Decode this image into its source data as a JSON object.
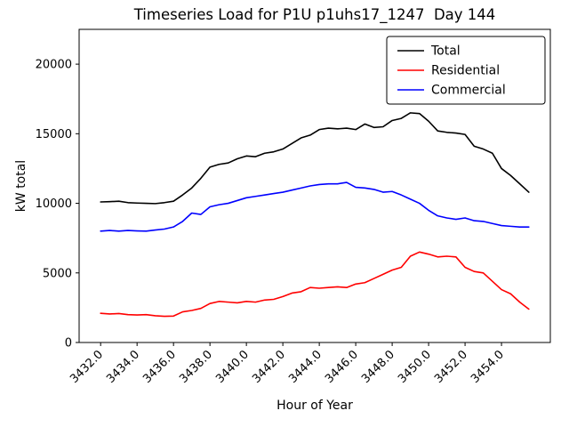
{
  "figure": {
    "title": "Timeseries Load for P1U p1uhs17_1247  Day 144",
    "xlabel": "Hour of Year",
    "ylabel": "kW total"
  },
  "chart_data": {
    "type": "line",
    "title": "Timeseries Load for P1U p1uhs17_1247  Day 144",
    "xlabel": "Hour of Year",
    "ylabel": "kW total",
    "xlim": [
      3430.82,
      3456.68
    ],
    "ylim": [
      0,
      22500
    ],
    "grid": false,
    "legend_position": "upper right",
    "xticks": [
      3432,
      3434,
      3436,
      3438,
      3440,
      3442,
      3444,
      3446,
      3448,
      3450,
      3452,
      3454
    ],
    "xtick_labels": [
      "3432.0",
      "3434.0",
      "3436.0",
      "3438.0",
      "3440.0",
      "3442.0",
      "3444.0",
      "3446.0",
      "3448.0",
      "3450.0",
      "3452.0",
      "3454.0"
    ],
    "yticks": [
      0,
      5000,
      10000,
      15000,
      20000
    ],
    "ytick_labels": [
      "0",
      "5000",
      "10000",
      "15000",
      "20000"
    ],
    "x": [
      3432.0,
      3432.5,
      3433.0,
      3433.5,
      3434.0,
      3434.5,
      3435.0,
      3435.5,
      3436.0,
      3436.5,
      3437.0,
      3437.5,
      3438.0,
      3438.5,
      3439.0,
      3439.5,
      3440.0,
      3440.5,
      3441.0,
      3441.5,
      3442.0,
      3442.5,
      3443.0,
      3443.5,
      3444.0,
      3444.5,
      3445.0,
      3445.5,
      3446.0,
      3446.5,
      3447.0,
      3447.5,
      3448.0,
      3448.5,
      3449.0,
      3449.5,
      3450.0,
      3450.5,
      3451.0,
      3451.5,
      3452.0,
      3452.5,
      3453.0,
      3453.5,
      3454.0,
      3454.5,
      3455.0,
      3455.5
    ],
    "series": [
      {
        "name": "Total",
        "color": "#000000",
        "values": [
          10100,
          10120,
          10150,
          10050,
          10020,
          10000,
          9980,
          10050,
          10150,
          10600,
          11100,
          11800,
          12600,
          12800,
          12900,
          13200,
          13400,
          13350,
          13600,
          13700,
          13900,
          14300,
          14700,
          14900,
          15300,
          15400,
          15350,
          15400,
          15300,
          15700,
          15450,
          15500,
          15950,
          16100,
          16500,
          16450,
          15900,
          15200,
          15100,
          15050,
          14950,
          14100,
          13900,
          13600,
          12500,
          12000,
          11400,
          10800
        ]
      },
      {
        "name": "Residential",
        "color": "#ff0000",
        "values": [
          2100,
          2050,
          2080,
          2000,
          1980,
          2000,
          1920,
          1880,
          1900,
          2200,
          2300,
          2450,
          2800,
          2950,
          2900,
          2850,
          2950,
          2900,
          3050,
          3100,
          3300,
          3550,
          3650,
          3950,
          3900,
          3950,
          4000,
          3950,
          4200,
          4300,
          4600,
          4900,
          5200,
          5400,
          6200,
          6500,
          6350,
          6150,
          6200,
          6150,
          5400,
          5100,
          5000,
          4400,
          3800,
          3500,
          2900,
          2400
        ]
      },
      {
        "name": "Commercial",
        "color": "#0000ff",
        "values": [
          8000,
          8050,
          8000,
          8050,
          8020,
          8000,
          8080,
          8150,
          8300,
          8700,
          9300,
          9200,
          9750,
          9900,
          10000,
          10200,
          10400,
          10500,
          10600,
          10700,
          10800,
          10950,
          11100,
          11250,
          11350,
          11400,
          11400,
          11500,
          11150,
          11100,
          11000,
          10800,
          10850,
          10600,
          10300,
          10000,
          9500,
          9100,
          8950,
          8850,
          8950,
          8750,
          8700,
          8550,
          8400,
          8350,
          8300,
          8300
        ]
      }
    ]
  }
}
